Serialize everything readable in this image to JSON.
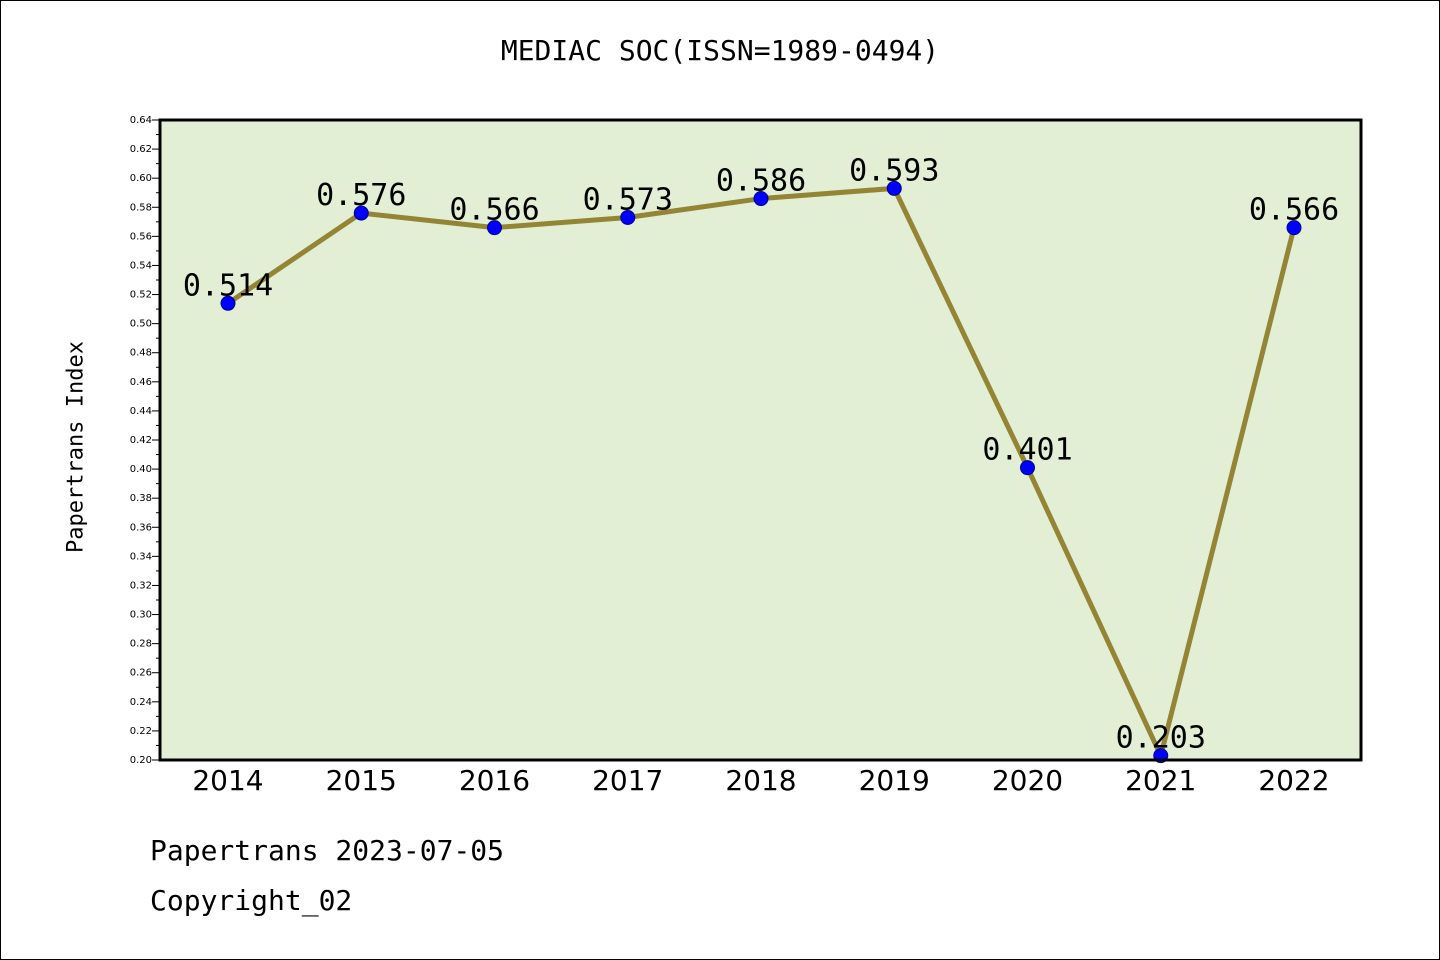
{
  "footer": {
    "source_line": "Papertrans 2023-07-05",
    "copyright_line": "Copyright_02"
  },
  "chart_data": {
    "type": "line",
    "title": "MEDIAC SOC(ISSN=1989-0494)",
    "xlabel": "",
    "ylabel": "Papertrans Index",
    "categories": [
      "2014",
      "2015",
      "2016",
      "2017",
      "2018",
      "2019",
      "2020",
      "2021",
      "2022"
    ],
    "series": [
      {
        "values": [
          0.514,
          0.576,
          0.566,
          0.573,
          0.586,
          0.593,
          0.401,
          0.203,
          0.566
        ],
        "labels": [
          "0.514",
          "0.576",
          "0.566",
          "0.573",
          "0.586",
          "0.593",
          "0.401",
          "0.203",
          "0.566"
        ]
      }
    ],
    "ylim": [
      0.2,
      0.64
    ],
    "yticks": [
      "0.20",
      "0.22",
      "0.24",
      "0.26",
      "0.28",
      "0.30",
      "0.32",
      "0.34",
      "0.36",
      "0.38",
      "0.40",
      "0.42",
      "0.44",
      "0.46",
      "0.48",
      "0.50",
      "0.52",
      "0.54",
      "0.56",
      "0.58",
      "0.60",
      "0.62",
      "0.64"
    ],
    "grid": false,
    "colors": {
      "plot_background": "#e2efd5",
      "line": "#948535",
      "marker": "#0000ff"
    }
  }
}
